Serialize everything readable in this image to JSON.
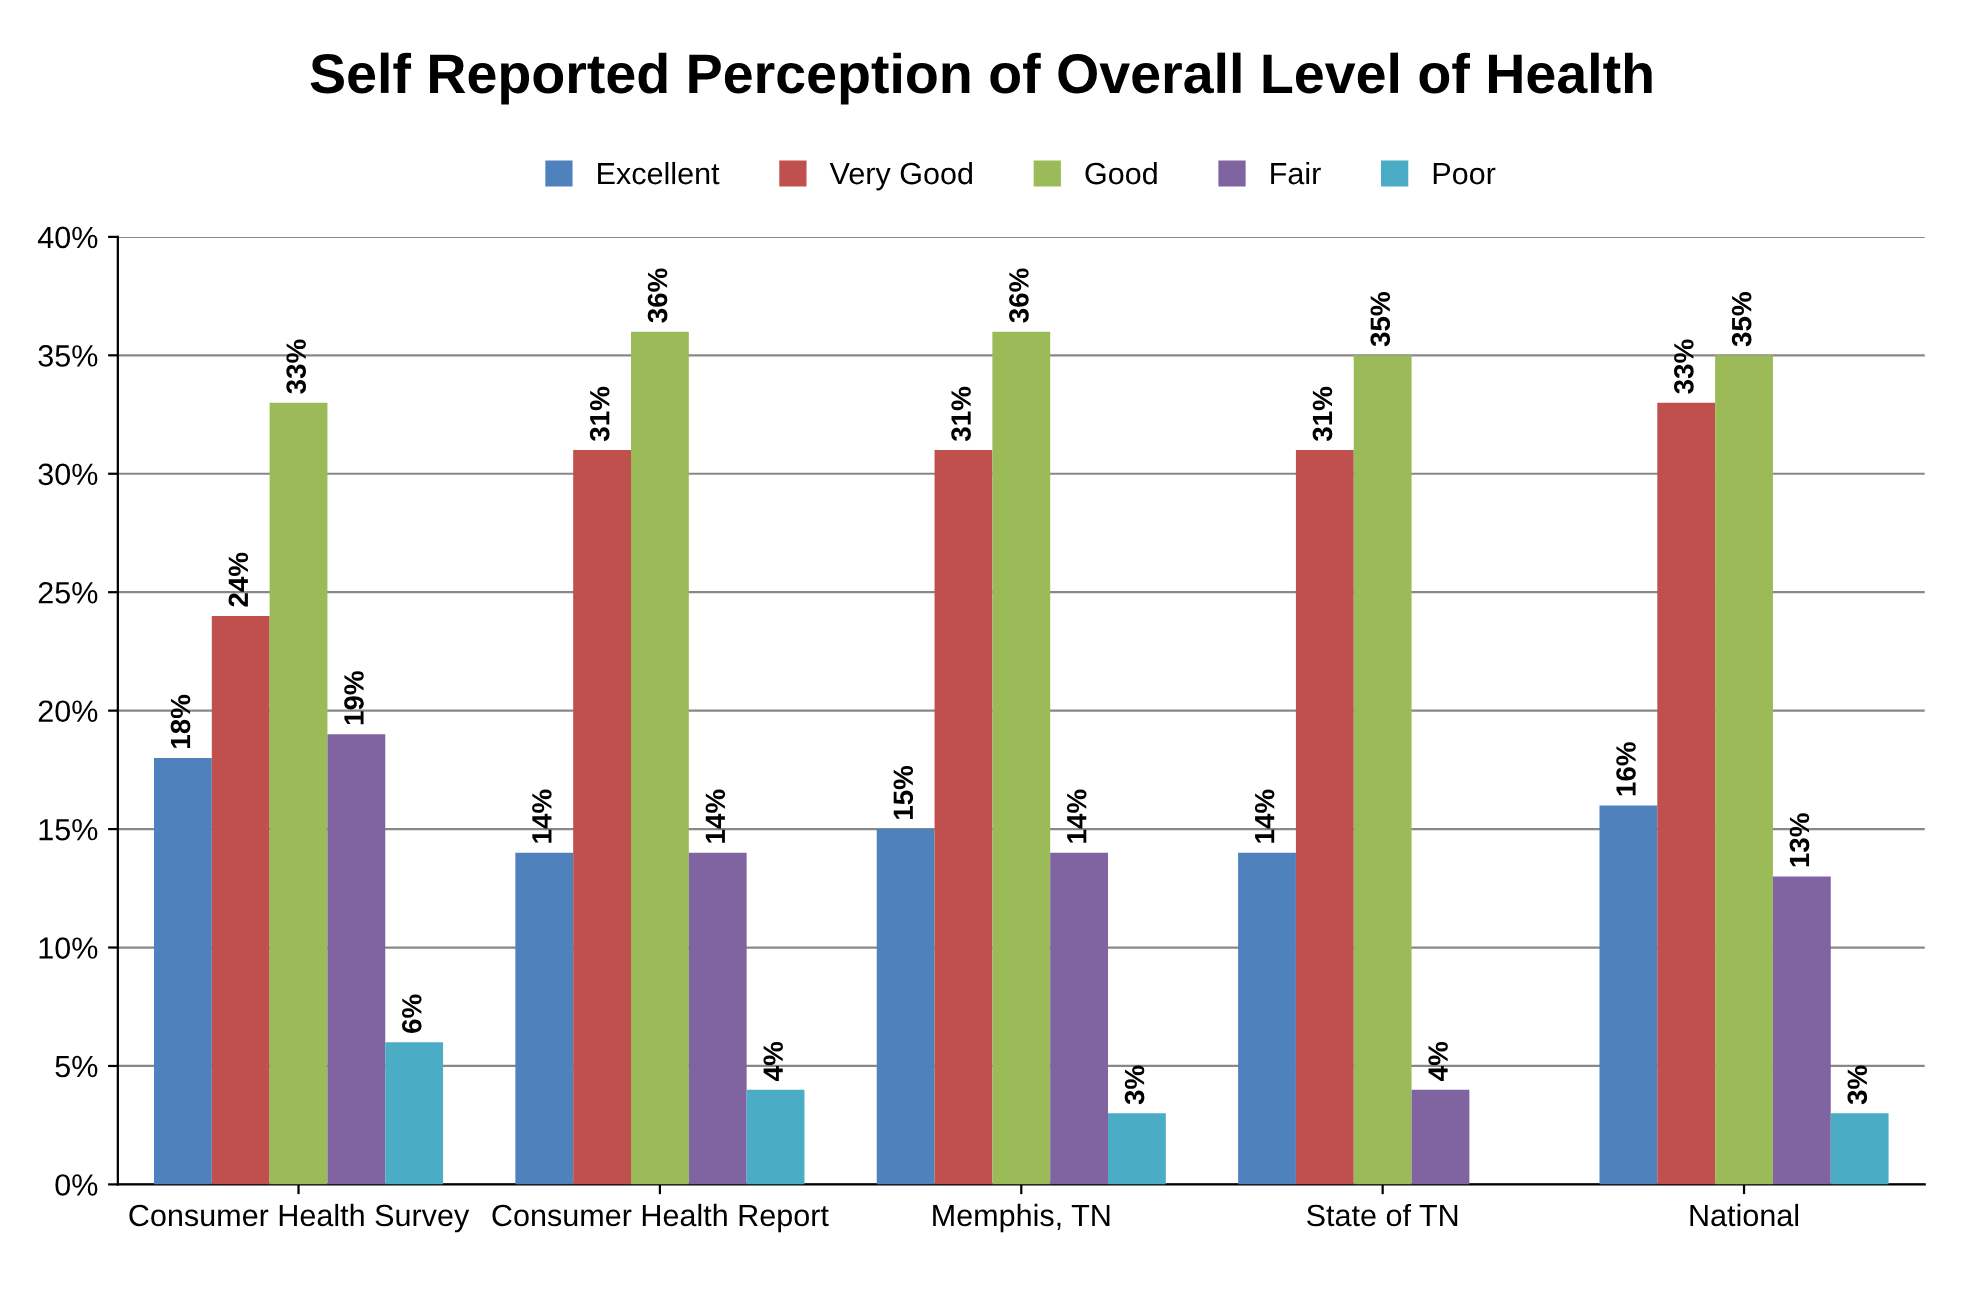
{
  "chart_data": {
    "type": "bar",
    "title": "Self Reported Perception of Overall Level of Health",
    "categories": [
      "Consumer Health Survey",
      "Consumer Health Report",
      "Memphis, TN",
      "State of TN",
      "National"
    ],
    "series": [
      {
        "name": "Excellent",
        "color": "#4f81bd",
        "values": [
          18,
          14,
          15,
          14,
          16
        ],
        "value_labels": [
          "18%",
          "14%",
          "15%",
          "14%",
          "16%"
        ]
      },
      {
        "name": "Very Good",
        "color": "#c0504d",
        "values": [
          24,
          31,
          31,
          31,
          33
        ],
        "value_labels": [
          "24%",
          "31%",
          "31%",
          "31%",
          "33%"
        ]
      },
      {
        "name": "Good",
        "color": "#9bbb59",
        "values": [
          33,
          36,
          36,
          35,
          35
        ],
        "value_labels": [
          "33%",
          "36%",
          "36%",
          "35%",
          "35%"
        ]
      },
      {
        "name": "Fair",
        "color": "#8064a2",
        "values": [
          19,
          14,
          14,
          4,
          13
        ],
        "value_labels": [
          "19%",
          "14%",
          "14%",
          "4%",
          "13%"
        ]
      },
      {
        "name": "Poor",
        "color": "#4bacc6",
        "values": [
          6,
          4,
          3,
          null,
          3
        ],
        "value_labels": [
          "6%",
          "4%",
          "3%",
          null,
          "3%"
        ]
      }
    ],
    "ylim": [
      0,
      40
    ],
    "yticks": [
      {
        "value": 0,
        "label": "0%"
      },
      {
        "value": 5,
        "label": "5%"
      },
      {
        "value": 10,
        "label": "10%"
      },
      {
        "value": 15,
        "label": "15%"
      },
      {
        "value": 20,
        "label": "20%"
      },
      {
        "value": 25,
        "label": "25%"
      },
      {
        "value": 30,
        "label": "30%"
      },
      {
        "value": 35,
        "label": "35%"
      },
      {
        "value": 40,
        "label": "40%"
      }
    ],
    "grid": "y",
    "legend": "top"
  }
}
